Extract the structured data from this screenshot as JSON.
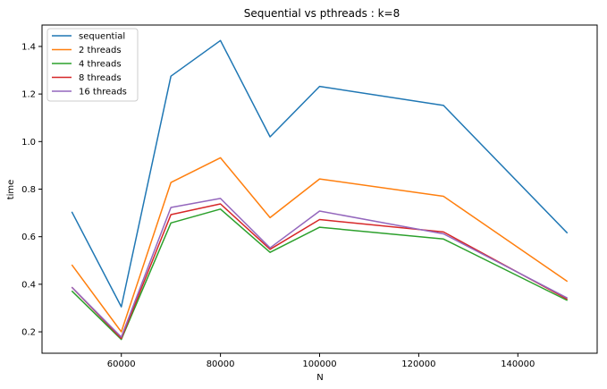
{
  "chart_data": {
    "type": "line",
    "title": "Sequential vs pthreads : k=8",
    "xlabel": "N",
    "ylabel": "time",
    "xlim": [
      44000,
      156000
    ],
    "ylim": [
      0.11,
      1.49
    ],
    "x_ticks": [
      60000,
      80000,
      100000,
      120000,
      140000
    ],
    "y_ticks": [
      0.2,
      0.4,
      0.6,
      0.8,
      1.0,
      1.2,
      1.4
    ],
    "x_tick_labels": [
      "60000",
      "80000",
      "100000",
      "120000",
      "140000"
    ],
    "y_tick_labels": [
      "0.2",
      "0.4",
      "0.6",
      "0.8",
      "1.0",
      "1.2",
      "1.4"
    ],
    "grid": false,
    "legend_position": "top-left",
    "x": [
      50000,
      60000,
      70000,
      80000,
      90000,
      100000,
      125000,
      150000
    ],
    "series": [
      {
        "name": "sequential",
        "color": "#1f77b4",
        "values": [
          0.705,
          0.305,
          1.275,
          1.425,
          1.02,
          1.232,
          1.152,
          0.615
        ]
      },
      {
        "name": "2 threads",
        "color": "#ff7f0e",
        "values": [
          0.482,
          0.2,
          0.828,
          0.932,
          0.68,
          0.843,
          0.77,
          0.412
        ]
      },
      {
        "name": "4 threads",
        "color": "#2ca02c",
        "values": [
          0.372,
          0.168,
          0.658,
          0.716,
          0.534,
          0.64,
          0.59,
          0.332
        ]
      },
      {
        "name": "8 threads",
        "color": "#d62728",
        "values": [
          0.388,
          0.172,
          0.693,
          0.738,
          0.547,
          0.672,
          0.62,
          0.337
        ]
      },
      {
        "name": "16 threads",
        "color": "#9467bd",
        "values": [
          0.388,
          0.178,
          0.723,
          0.761,
          0.553,
          0.708,
          0.612,
          0.342
        ]
      }
    ]
  }
}
